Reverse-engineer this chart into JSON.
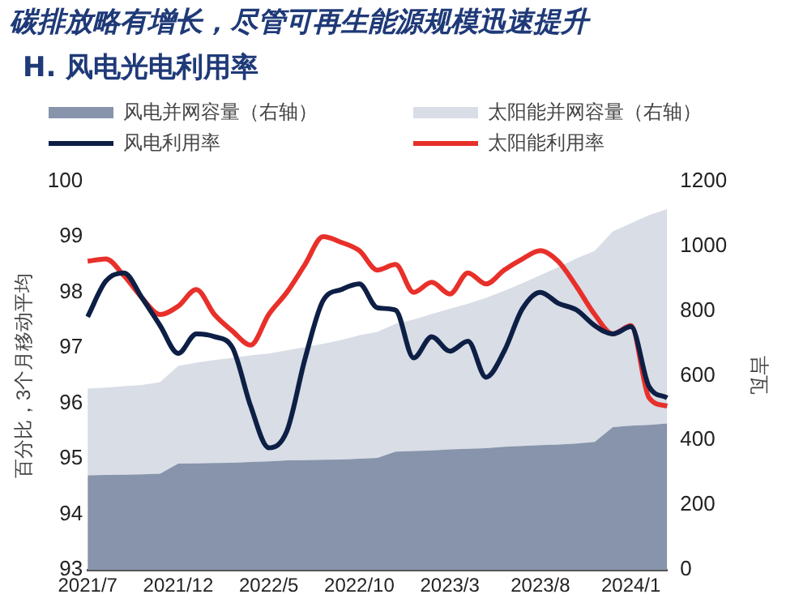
{
  "chart_data": {
    "type": "line",
    "title": "碳排放略有增长，尽管可再生能源规模迅速提升",
    "subtitle": "H. 风电光电利用率",
    "ylabel": "百分比，3个月移动平均",
    "y2label": "吉瓦",
    "categories": [
      "2021/7",
      null,
      null,
      null,
      null,
      "2021/12",
      null,
      null,
      null,
      null,
      "2022/5",
      null,
      null,
      null,
      null,
      "2022/10",
      null,
      null,
      null,
      null,
      "2023/3",
      null,
      null,
      null,
      null,
      "2023/8",
      null,
      null,
      null,
      null,
      "2024/1",
      null,
      null
    ],
    "series": [
      {
        "name": "风电并网容量（右轴）",
        "type": "area",
        "axis": "y2",
        "color": "#8794ab",
        "values": [
          292,
          293,
          294,
          295,
          297,
          328,
          329,
          330,
          331,
          333,
          335,
          338,
          339,
          340,
          341,
          343,
          346,
          365,
          367,
          369,
          372,
          374,
          376,
          380,
          383,
          385,
          387,
          390,
          395,
          441,
          445,
          448,
          452
        ]
      },
      {
        "name": "太阳能并网容量（右轴）",
        "type": "area",
        "axis": "y2",
        "color": "#d8dde6",
        "values": [
          268,
          270,
          273,
          276,
          283,
          302,
          311,
          318,
          324,
          329,
          333,
          340,
          349,
          358,
          369,
          381,
          389,
          395,
          406,
          421,
          434,
          448,
          464,
          482,
          502,
          525,
          548,
          572,
          590,
          604,
          625,
          647,
          662
        ]
      },
      {
        "name": "风电利用率",
        "color": "#0d1f45",
        "values": [
          97.56,
          98.2,
          98.35,
          97.9,
          97.4,
          96.9,
          97.25,
          97.2,
          97.0,
          95.95,
          95.2,
          95.5,
          96.8,
          97.85,
          98.05,
          98.15,
          97.72,
          97.68,
          96.82,
          97.2,
          96.94,
          97.12,
          96.47,
          96.94,
          97.7,
          98.0,
          97.8,
          97.68,
          97.4,
          97.25,
          97.38,
          96.3,
          96.1
        ]
      },
      {
        "name": "太阳能利用率",
        "color": "#e8302a",
        "values": [
          98.56,
          98.6,
          98.3,
          97.9,
          97.6,
          97.75,
          98.05,
          97.6,
          97.3,
          97.05,
          97.6,
          98.0,
          98.5,
          99.0,
          98.9,
          98.75,
          98.4,
          98.5,
          98.0,
          98.18,
          97.97,
          98.35,
          98.15,
          98.4,
          98.6,
          98.75,
          98.55,
          98.1,
          97.6,
          97.25,
          97.4,
          96.1,
          95.95
        ]
      }
    ],
    "stacked": true,
    "ylim": [
      93,
      100
    ],
    "yticks": [
      93,
      94,
      95,
      96,
      97,
      98,
      99,
      100
    ],
    "y2lim": [
      0,
      1200
    ],
    "y2ticks": [
      0,
      200,
      400,
      600,
      800,
      1000,
      1200
    ],
    "grid": false,
    "legend": "top",
    "marker": "none",
    "line_style": "solid"
  }
}
